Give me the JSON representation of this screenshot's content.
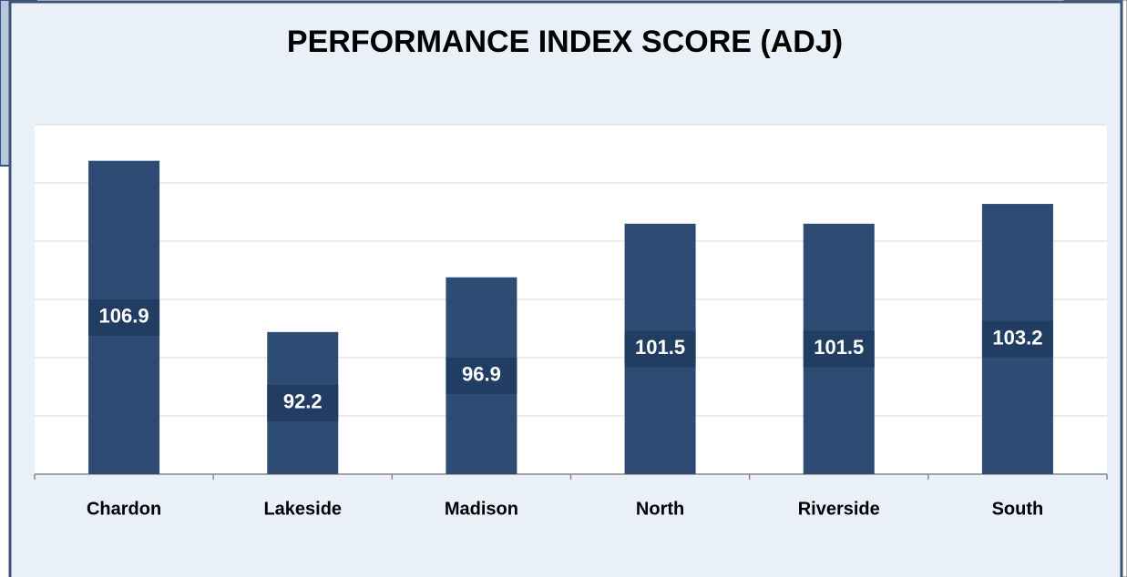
{
  "chart_data": {
    "type": "bar",
    "title": "PERFORMANCE INDEX SCORE (ADJ)",
    "categories": [
      "Chardon",
      "Lakeside",
      "Madison",
      "North",
      "Riverside",
      "South"
    ],
    "values": [
      106.9,
      92.2,
      96.9,
      101.5,
      101.5,
      103.2
    ],
    "color": "#2e4b73",
    "ylim": [
      80,
      110
    ],
    "yticks": [
      80,
      85,
      90,
      95,
      100,
      105,
      110
    ],
    "grid": true
  }
}
